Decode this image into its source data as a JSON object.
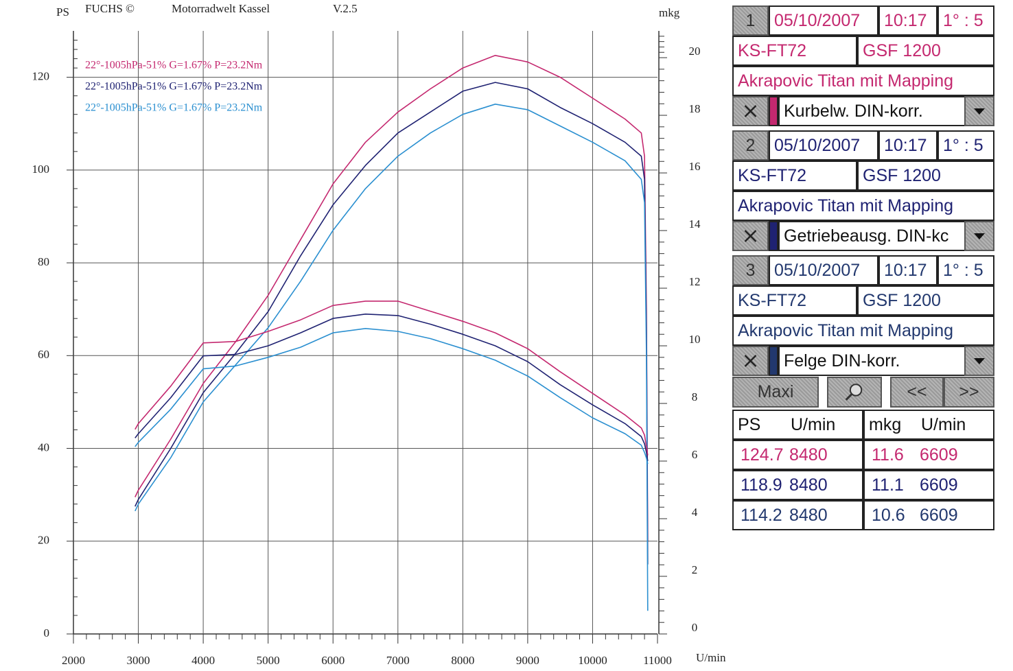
{
  "chart_data": {
    "type": "line",
    "header": [
      "FUCHS ©",
      "Motorradwelt Kassel",
      "V.2.5"
    ],
    "ylabel": "PS",
    "y2label": "mkg",
    "xlabel": "U/min",
    "x": [
      2950,
      3000,
      3500,
      4000,
      4500,
      5000,
      5500,
      6000,
      6500,
      7000,
      7500,
      8000,
      8500,
      9000,
      9500,
      10000,
      10500,
      10750,
      10800,
      10830,
      10850
    ],
    "series": [
      {
        "name": "22°-1005hPa-51% G=1.67% P=23.2Nm",
        "color": "#c4286f",
        "values": [
          29.5,
          31,
          42,
          54,
          63,
          73,
          85,
          97,
          106,
          112.5,
          117.5,
          122,
          124.7,
          123.3,
          120,
          115.5,
          111,
          108,
          103,
          70,
          20
        ]
      },
      {
        "name": "22°-1005hPa-51% G=1.67% P=23.2Nm",
        "color": "#1f2272",
        "values": [
          27.5,
          29,
          40,
          52,
          60.5,
          69.5,
          81.5,
          92.5,
          101,
          108,
          112.5,
          117,
          118.9,
          117.5,
          113.5,
          110,
          106,
          103,
          98,
          65,
          15
        ]
      },
      {
        "name": "22°-1005hPa-51% G=1.67% P=23.2Nm",
        "color": "#2a8fd0",
        "values": [
          26.5,
          28,
          38,
          50,
          58,
          66,
          76,
          87,
          96,
          103,
          108,
          112,
          114.2,
          113,
          109.5,
          106,
          102,
          98,
          93,
          60,
          5
        ]
      },
      {
        "color": "#c4286f",
        "axis": "y2",
        "values": [
          7.1,
          7.3,
          8.6,
          10.1,
          10.15,
          10.5,
          10.9,
          11.4,
          11.55,
          11.55,
          11.2,
          10.85,
          10.45,
          9.9,
          9.1,
          8.35,
          7.6,
          7.15,
          6.9,
          6.5,
          6.2
        ]
      },
      {
        "color": "#1f2272",
        "axis": "y2",
        "values": [
          6.8,
          6.95,
          8.2,
          9.65,
          9.7,
          10.0,
          10.45,
          10.95,
          11.1,
          11.05,
          10.75,
          10.4,
          10.0,
          9.45,
          8.65,
          7.95,
          7.3,
          6.85,
          6.6,
          6.3,
          6.0
        ]
      },
      {
        "color": "#2a8fd0",
        "axis": "y2",
        "values": [
          6.5,
          6.65,
          7.8,
          9.2,
          9.3,
          9.6,
          9.95,
          10.45,
          10.6,
          10.5,
          10.25,
          9.9,
          9.5,
          8.95,
          8.2,
          7.5,
          6.95,
          6.55,
          6.3,
          6.1,
          5.9
        ]
      }
    ],
    "xlim": [
      2000,
      11000
    ],
    "xticks": [
      2000,
      3000,
      4000,
      5000,
      6000,
      7000,
      8000,
      9000,
      10000,
      11000
    ],
    "ylim": [
      0,
      130
    ],
    "yticks": [
      0,
      20,
      40,
      60,
      80,
      100,
      120
    ],
    "y2lim": [
      0,
      20.93
    ],
    "y2ticks": [
      0,
      2,
      4,
      6,
      8,
      10,
      12,
      14,
      16,
      18,
      20
    ],
    "grid": true
  },
  "panel": {
    "runs": [
      {
        "color": "#c4286f",
        "number": "1",
        "date": "05/10/2007",
        "time": "10:17",
        "ratio": "1° : 5",
        "plate": "KS-FT72",
        "model": "GSF 1200",
        "description": "Akrapovic Titan mit Mapping",
        "measure": "Kurbelw. DIN-korr."
      },
      {
        "color": "#1f2272",
        "number": "2",
        "date": "05/10/2007",
        "time": "10:17",
        "ratio": "1° : 5",
        "plate": "KS-FT72",
        "model": "GSF 1200",
        "description": "Akrapovic Titan mit Mapping",
        "measure": "Getriebeausg. DIN-kc"
      },
      {
        "color": "#22386e",
        "number": "3",
        "date": "05/10/2007",
        "time": "10:17",
        "ratio": "1° : 5",
        "plate": "KS-FT72",
        "model": "GSF 1200",
        "description": "Akrapovic Titan mit Mapping",
        "measure": "Felge DIN-korr."
      }
    ],
    "buttons": {
      "maxi": "Maxi",
      "back": "<<",
      "forward": ">>"
    },
    "table": {
      "header": [
        "PS",
        "U/min",
        "mkg",
        "U/min"
      ],
      "rows": [
        [
          "124.7",
          "8480",
          "11.6",
          "6609"
        ],
        [
          "118.9",
          "8480",
          "11.1",
          "6609"
        ],
        [
          "114.2",
          "8480",
          "10.6",
          "6609"
        ]
      ]
    }
  }
}
